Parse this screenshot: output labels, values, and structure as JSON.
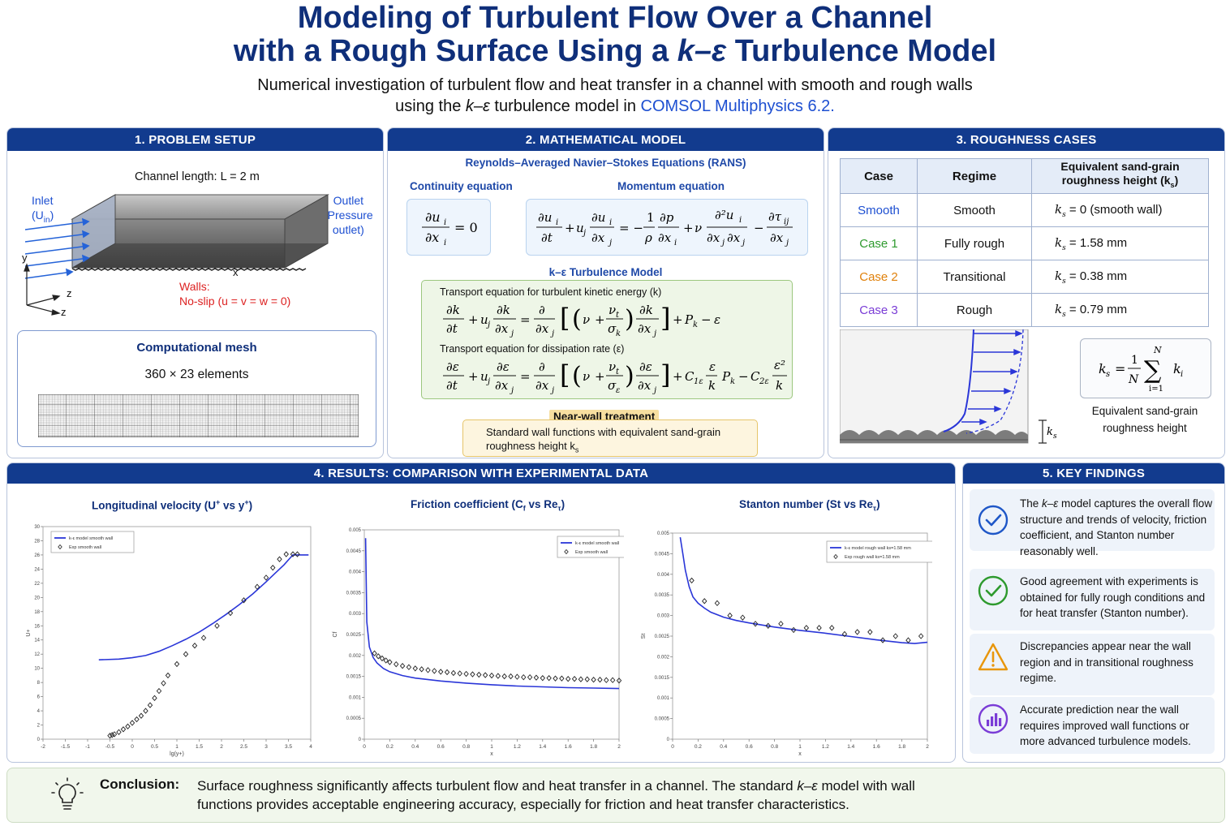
{
  "header": {
    "title_line1": "Modeling of Turbulent Flow Over a Channel",
    "title_line2_prefix": "with a Rough Surface Using a ",
    "title_line2_model": "k–ε",
    "title_line2_suffix": " Turbulence Model",
    "subtitle_line1": "Numerical investigation of turbulent flow and heat transfer in a channel with smooth and rough walls",
    "subtitle_line2_prefix": "using the ",
    "subtitle_line2_model": "k–ε",
    "subtitle_line2_mid": " turbulence model in ",
    "subtitle_line2_software": "COMSOL Multiphysics 6.2."
  },
  "setup": {
    "heading": "1. PROBLEM SETUP",
    "channel_length": "Channel length: L = 2 m",
    "inlet_label": "Inlet",
    "inlet_var": "(U",
    "inlet_sub": "in",
    "inlet_close": ")",
    "outlet_line1": "Outlet",
    "outlet_line2": "(Pressure",
    "outlet_line3": "outlet)",
    "walls_label": "Walls:",
    "walls_bc": "No-slip (u = v = w = 0)",
    "axis_x": "x",
    "axis_y": "y",
    "axis_z": "z",
    "axis_z2": "z",
    "mesh_title": "Computational mesh",
    "mesh_size": "360 × 23 elements"
  },
  "model": {
    "heading": "2. MATHEMATICAL MODEL",
    "rans": "Reynolds–Averaged Navier–Stokes Equations (RANS)",
    "continuity": "Continuity equation",
    "momentum": "Momentum equation",
    "ke_title": "k–ε Turbulence Model",
    "tke_eq_label": "Transport equation for turbulent kinetic energy (k)",
    "eps_eq_label": "Transport equation for dissipation rate (ε)",
    "nearwall_title": "Near-wall treatment",
    "nearwall_line1": "Standard wall functions with equivalent sand-grain",
    "nearwall_line2": "roughness height k",
    "nearwall_sub": "s"
  },
  "roughness": {
    "heading": "3. ROUGHNESS CASES",
    "col_case": "Case",
    "col_regime": "Regime",
    "col_height_line1": "Equivalent sand-grain",
    "col_height_line2": "roughness height (k",
    "col_height_sub": "s",
    "col_height_close": ")",
    "rows": [
      {
        "case": "Smooth",
        "regime": "Smooth",
        "value": "= 0 (smooth wall)",
        "color": "#1d4fd1"
      },
      {
        "case": "Case 1",
        "regime": "Fully rough",
        "value": "= 1.58 mm",
        "color": "#2e9a2e"
      },
      {
        "case": "Case 2",
        "regime": "Transitional",
        "value": "= 0.38 mm",
        "color": "#e0810b"
      },
      {
        "case": "Case 3",
        "regime": "Rough",
        "value": "= 0.79 mm",
        "color": "#7a3cd6"
      }
    ],
    "ks_symbol": "k",
    "ks_sub": "s",
    "formula_label_line1": "Equivalent sand-grain",
    "formula_label_line2": "roughness height"
  },
  "results": {
    "heading": "4. RESULTS: COMPARISON WITH EXPERIMENTAL DATA",
    "chart1_title_prefix": "Longitudinal velocity (U",
    "chart1_title_mid": " vs y",
    "chart1_title_close": ")",
    "chart2_title_prefix": "Friction coefficient (C",
    "chart2_title_sub1": "f",
    "chart2_title_mid": " vs Re",
    "chart2_title_sub2": "τ",
    "chart2_title_close": ")",
    "chart3_title_prefix": "Stanton number (St vs Re",
    "chart3_title_sub": "τ",
    "chart3_title_close": ")"
  },
  "chart_data": [
    {
      "type": "line",
      "title": "Longitudinal velocity (U+ vs y+)",
      "xlabel": "lg(y+)",
      "ylabel": "U+",
      "xlim": [
        -2,
        4
      ],
      "ylim": [
        0,
        30
      ],
      "xticks": [
        "-2",
        "-1.5",
        "-1",
        "-0.5",
        "0",
        "0.5",
        "1",
        "1.5",
        "2",
        "2.5",
        "3",
        "3.5",
        "4"
      ],
      "yticks": [
        "0",
        "2",
        "4",
        "6",
        "8",
        "10",
        "12",
        "14",
        "16",
        "18",
        "20",
        "22",
        "24",
        "26",
        "28",
        "30"
      ],
      "legend": "top-left",
      "series": [
        {
          "name": "k-ε model smooth wall",
          "style": "line",
          "color": "#2a36d8",
          "x": [
            -0.75,
            -0.3,
            0,
            0.3,
            0.6,
            0.9,
            1.2,
            1.5,
            1.8,
            2.1,
            2.4,
            2.7,
            3.0,
            3.2,
            3.4,
            3.5,
            3.6,
            3.7,
            3.8,
            3.95
          ],
          "y": [
            11.2,
            11.3,
            11.5,
            11.8,
            12.4,
            13.2,
            14.1,
            15.1,
            16.3,
            17.6,
            19.0,
            20.5,
            22.2,
            23.4,
            24.6,
            25.3,
            26.0,
            26.0,
            26.0,
            26.0
          ]
        },
        {
          "name": "Exp smooth wall",
          "style": "markers",
          "color": "#222",
          "x": [
            -0.5,
            -0.45,
            -0.4,
            -0.3,
            -0.2,
            -0.1,
            0,
            0.1,
            0.2,
            0.3,
            0.4,
            0.5,
            0.6,
            0.7,
            0.8,
            1.0,
            1.2,
            1.4,
            1.6,
            1.9,
            2.2,
            2.5,
            2.8,
            3.0,
            3.15,
            3.3,
            3.45,
            3.6,
            3.7
          ],
          "y": [
            0.5,
            0.6,
            0.7,
            1.0,
            1.4,
            1.8,
            2.3,
            2.8,
            3.3,
            4.0,
            4.8,
            5.8,
            6.8,
            7.9,
            9.0,
            10.6,
            12.0,
            13.2,
            14.3,
            16.0,
            17.8,
            19.6,
            21.5,
            22.8,
            24.2,
            25.4,
            26.1,
            26.1,
            26.1
          ]
        }
      ]
    },
    {
      "type": "line",
      "title": "Friction coefficient (Cf vs Reτ)",
      "xlabel": "x",
      "ylabel": "Cf",
      "xlim": [
        0,
        2
      ],
      "ylim": [
        0,
        0.005
      ],
      "xticks": [
        "0",
        "0.2",
        "0.4",
        "0.6",
        "0.8",
        "1",
        "1.2",
        "1.4",
        "1.6",
        "1.8",
        "2"
      ],
      "yticks": [
        "0",
        "0.0005",
        "0.001",
        "0.0015",
        "0.002",
        "0.0025",
        "0.003",
        "0.0035",
        "0.004",
        "0.0045",
        "0.005"
      ],
      "legend": "top-right",
      "series": [
        {
          "name": "k-ε model smooth wall",
          "style": "line",
          "color": "#2a36d8",
          "x": [
            0.01,
            0.02,
            0.04,
            0.07,
            0.1,
            0.15,
            0.2,
            0.3,
            0.4,
            0.6,
            0.8,
            1.0,
            1.2,
            1.4,
            1.6,
            1.8,
            2.0
          ],
          "y": [
            0.0048,
            0.0028,
            0.0022,
            0.00195,
            0.00182,
            0.00169,
            0.00161,
            0.00152,
            0.00146,
            0.00139,
            0.00134,
            0.0013,
            0.00127,
            0.00125,
            0.00123,
            0.00122,
            0.00121
          ]
        },
        {
          "name": "Exp smooth wall",
          "style": "markers",
          "color": "#222",
          "x": [
            0.08,
            0.11,
            0.14,
            0.17,
            0.2,
            0.25,
            0.3,
            0.35,
            0.4,
            0.45,
            0.5,
            0.55,
            0.6,
            0.65,
            0.7,
            0.75,
            0.8,
            0.85,
            0.9,
            0.95,
            1.0,
            1.05,
            1.1,
            1.15,
            1.2,
            1.25,
            1.3,
            1.35,
            1.4,
            1.45,
            1.5,
            1.55,
            1.6,
            1.65,
            1.7,
            1.75,
            1.8,
            1.85,
            1.9,
            1.95,
            2.0
          ],
          "y": [
            0.00205,
            0.00198,
            0.00193,
            0.00188,
            0.00184,
            0.00179,
            0.00175,
            0.00172,
            0.00169,
            0.00167,
            0.00165,
            0.00163,
            0.00161,
            0.0016,
            0.00158,
            0.00157,
            0.00156,
            0.00155,
            0.00154,
            0.00153,
            0.00152,
            0.00151,
            0.0015,
            0.0015,
            0.00149,
            0.00148,
            0.00148,
            0.00147,
            0.00146,
            0.00146,
            0.00145,
            0.00145,
            0.00144,
            0.00144,
            0.00143,
            0.00143,
            0.00142,
            0.00142,
            0.00141,
            0.00141,
            0.0014
          ]
        }
      ]
    },
    {
      "type": "line",
      "title": "Stanton number (St vs Reτ)",
      "xlabel": "x",
      "ylabel": "St",
      "xlim": [
        0,
        2
      ],
      "ylim": [
        0,
        0.005
      ],
      "xticks": [
        "0",
        "0.2",
        "0.4",
        "0.6",
        "0.8",
        "1",
        "1.2",
        "1.4",
        "1.6",
        "1.8",
        "2"
      ],
      "yticks": [
        "0",
        "0.0005",
        "0.001",
        "0.0015",
        "0.002",
        "0.0025",
        "0.003",
        "0.0035",
        "0.004",
        "0.0045",
        "0.005"
      ],
      "legend": "top-right",
      "series": [
        {
          "name": "k-ε model rough wall ks=1.58 mm",
          "style": "line",
          "color": "#2a36d8",
          "x": [
            0.06,
            0.08,
            0.1,
            0.13,
            0.16,
            0.2,
            0.25,
            0.3,
            0.4,
            0.5,
            0.6,
            0.8,
            1.0,
            1.2,
            1.4,
            1.6,
            1.8,
            1.9,
            2.0
          ],
          "y": [
            0.0049,
            0.0045,
            0.0041,
            0.0037,
            0.00345,
            0.0033,
            0.00318,
            0.00308,
            0.00296,
            0.00288,
            0.00282,
            0.00272,
            0.00264,
            0.00257,
            0.00249,
            0.00241,
            0.00234,
            0.00232,
            0.00235
          ]
        },
        {
          "name": "Exp rough wall ks=1.58 mm",
          "style": "markers",
          "color": "#222",
          "x": [
            0.15,
            0.25,
            0.35,
            0.45,
            0.55,
            0.65,
            0.75,
            0.85,
            0.95,
            1.05,
            1.15,
            1.25,
            1.35,
            1.45,
            1.55,
            1.65,
            1.75,
            1.85,
            1.95
          ],
          "y": [
            0.00385,
            0.00335,
            0.0033,
            0.003,
            0.00295,
            0.0028,
            0.00275,
            0.0028,
            0.00265,
            0.0027,
            0.0027,
            0.0027,
            0.00255,
            0.0026,
            0.0026,
            0.0024,
            0.0025,
            0.0024,
            0.0025
          ]
        }
      ]
    }
  ],
  "findings": {
    "heading": "5. KEY FINDINGS",
    "items": [
      {
        "pre": "The ",
        "em": "k–ε",
        "post": " model captures the overall flow structure and trends of velocity, friction coefficient, and Stanton number reasonably well."
      },
      {
        "pre": "",
        "em": "",
        "post": "Good agreement with experiments is obtained for fully rough conditions and for heat transfer (Stanton number)."
      },
      {
        "pre": "",
        "em": "",
        "post": "Discrepancies appear near the wall region and in transitional roughness regime."
      },
      {
        "pre": "",
        "em": "",
        "post": "Accurate prediction near the wall requires improved wall functions or more advanced turbulence models."
      }
    ]
  },
  "conclusion": {
    "label": "Conclusion:",
    "line1_pre": "Surface roughness significantly affects turbulent flow and heat transfer in a channel. The standard ",
    "line1_em": "k–ε",
    "line1_post": " model with wall",
    "line2": "functions provides acceptable engineering accuracy, especially for friction and heat transfer characteristics."
  }
}
